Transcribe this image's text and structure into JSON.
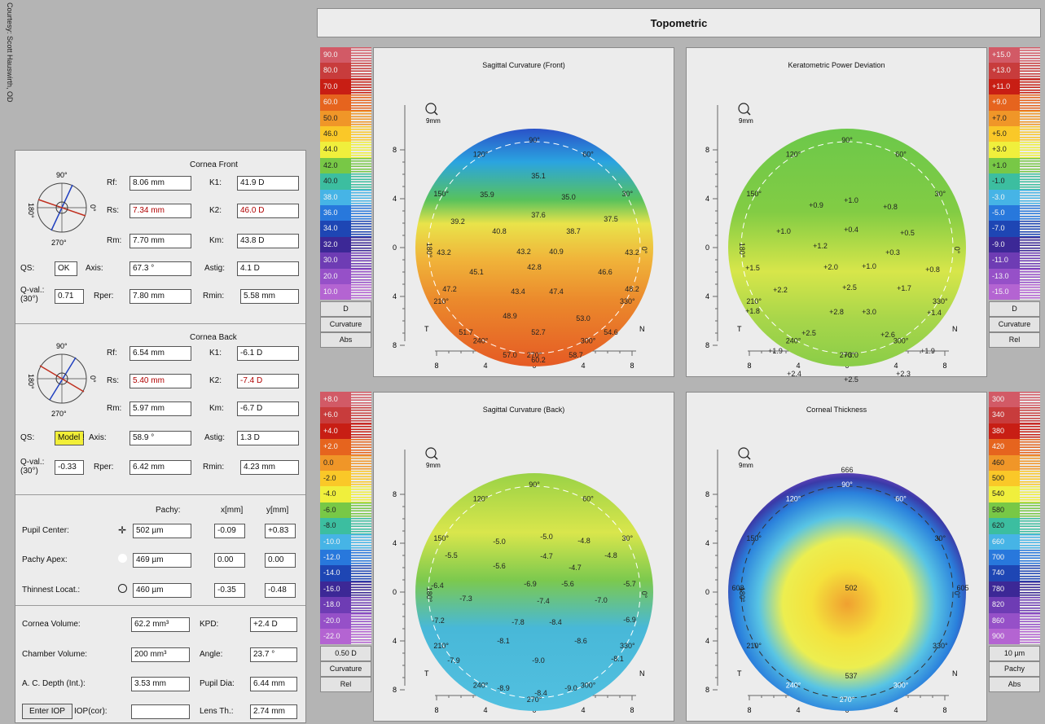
{
  "credit": "Courtesy: Scott Hauswirth, OD",
  "title": "Topometric",
  "front": {
    "title": "Cornea Front",
    "rf_label": "Rf:",
    "rf": "8.06 mm",
    "k1_label": "K1:",
    "k1": "41.9 D",
    "rs_label": "Rs:",
    "rs": "7.34 mm",
    "k2_label": "K2:",
    "k2": "46.0 D",
    "rm_label": "Rm:",
    "rm": "7.70 mm",
    "km_label": "Km:",
    "km": "43.8 D",
    "qs_label": "QS:",
    "qs": "OK",
    "axis_label": "Axis:",
    "axis": "67.3 °",
    "astig_label": "Astig:",
    "astig": "4.1 D",
    "qval_label": "Q-val.:",
    "qval_sub": "(30°)",
    "qval": "0.71",
    "rper_label": "Rper:",
    "rper": "7.80 mm",
    "rmin_label": "Rmin:",
    "rmin": "5.58 mm"
  },
  "back": {
    "title": "Cornea Back",
    "rf_label": "Rf:",
    "rf": "6.54 mm",
    "k1_label": "K1:",
    "k1": "-6.1 D",
    "rs_label": "Rs:",
    "rs": "5.40 mm",
    "k2_label": "K2:",
    "k2": "-7.4 D",
    "rm_label": "Rm:",
    "rm": "5.97 mm",
    "km_label": "Km:",
    "km": "-6.7 D",
    "qs_label": "QS:",
    "qs": "Model !",
    "axis_label": "Axis:",
    "axis": "58.9 °",
    "astig_label": "Astig:",
    "astig": "1.3 D",
    "qval_label": "Q-val.:",
    "qval_sub": "(30°)",
    "qval": "-0.33",
    "rper_label": "Rper:",
    "rper": "6.42 mm",
    "rmin_label": "Rmin:",
    "rmin": "4.23 mm"
  },
  "dial": {
    "deg90": "90°",
    "deg0": "0°",
    "deg180": "180°",
    "deg270": "270°"
  },
  "pachy": {
    "h_pachy": "Pachy:",
    "h_x": "x[mm]",
    "h_y": "y[mm]",
    "rows": [
      {
        "label": "Pupil Center:",
        "pachy": "502 µm",
        "x": "-0.09",
        "y": "+0.83"
      },
      {
        "label": "Pachy Apex:",
        "pachy": "469 µm",
        "x": "0.00",
        "y": "0.00"
      },
      {
        "label": "Thinnest Locat.:",
        "pachy": "460 µm",
        "x": "-0.35",
        "y": "-0.48"
      }
    ]
  },
  "volumes": {
    "cornea_volume_label": "Cornea Volume:",
    "cornea_volume": "62.2 mm³",
    "kpd_label": "KPD:",
    "kpd": "+2.4 D",
    "chamber_volume_label": "Chamber Volume:",
    "chamber_volume": "200 mm³",
    "angle_label": "Angle:",
    "angle": "23.7 °",
    "ac_depth_label": "A. C. Depth (Int.):",
    "ac_depth": "3.53 mm",
    "pupil_dia_label": "Pupil Dia:",
    "pupil_dia": "6.44 mm",
    "enter_iop": "Enter IOP",
    "iop_label": "IOP(cor):",
    "iop": "",
    "lens_th_label": "Lens Th.:",
    "lens_th": "2.74 mm"
  },
  "scales": {
    "front": {
      "values": [
        "90.0",
        "80.0",
        "70.0",
        "60.0",
        "50.0",
        "46.0",
        "44.0",
        "42.0",
        "40.0",
        "38.0",
        "36.0",
        "34.0",
        "32.0",
        "30.0",
        "20.0",
        "10.0"
      ],
      "colors": [
        "#d25a66",
        "#c83c3c",
        "#c81e14",
        "#e6641e",
        "#f09628",
        "#fac828",
        "#f0ef3c",
        "#78c846",
        "#3cbea0",
        "#46b4e6",
        "#2878dc",
        "#1e46b4",
        "#3c2896",
        "#6e3cb4",
        "#9650c8",
        "#b464d2"
      ],
      "box1": "D",
      "box2": "Curvature",
      "box3": "Abs"
    },
    "kpd": {
      "values": [
        "+15.0",
        "+13.0",
        "+11.0",
        "+9.0",
        "+7.0",
        "+5.0",
        "+3.0",
        "+1.0",
        "-1.0",
        "-3.0",
        "-5.0",
        "-7.0",
        "-9.0",
        "-11.0",
        "-13.0",
        "-15.0"
      ],
      "colors": [
        "#d25a66",
        "#c83c3c",
        "#c81e14",
        "#e6641e",
        "#f09628",
        "#fac828",
        "#f0ef3c",
        "#78c846",
        "#3cbea0",
        "#46b4e6",
        "#2878dc",
        "#1e46b4",
        "#3c2896",
        "#6e3cb4",
        "#9650c8",
        "#b464d2"
      ],
      "box1": "D",
      "box2": "Curvature",
      "box3": "Rel"
    },
    "back": {
      "values": [
        "+8.0",
        "+6.0",
        "+4.0",
        "+2.0",
        "0.0",
        "-2.0",
        "-4.0",
        "-6.0",
        "-8.0",
        "-10.0",
        "-12.0",
        "-14.0",
        "-16.0",
        "-18.0",
        "-20.0",
        "-22.0"
      ],
      "colors": [
        "#d25a66",
        "#c83c3c",
        "#c81e14",
        "#e6641e",
        "#f09628",
        "#fac828",
        "#f0ef3c",
        "#78c846",
        "#3cbea0",
        "#46b4e6",
        "#2878dc",
        "#1e46b4",
        "#3c2896",
        "#6e3cb4",
        "#9650c8",
        "#b464d2"
      ],
      "box1": "0.50 D",
      "box2": "Curvature",
      "box3": "Rel"
    },
    "thick": {
      "values": [
        "300",
        "340",
        "380",
        "420",
        "460",
        "500",
        "540",
        "580",
        "620",
        "660",
        "700",
        "740",
        "780",
        "820",
        "860",
        "900"
      ],
      "colors": [
        "#d25a66",
        "#c83c3c",
        "#c81e14",
        "#e6641e",
        "#f09628",
        "#fac828",
        "#f0ef3c",
        "#78c846",
        "#3cbea0",
        "#46b4e6",
        "#2878dc",
        "#1e46b4",
        "#3c2896",
        "#6e3cb4",
        "#9650c8",
        "#b464d2"
      ],
      "box1": "10 µm",
      "box2": "Pachy",
      "box3": "Abs"
    }
  },
  "maps": [
    {
      "title": "Sagittal Curvature (Front)",
      "lens": "9mm",
      "values": [
        [
          "35.9",
          -58,
          -65
        ],
        [
          "35.1",
          5,
          -88
        ],
        [
          "35.0",
          42,
          -62
        ],
        [
          "39.2",
          -94,
          -32
        ],
        [
          "37.6",
          5,
          -40
        ],
        [
          "37.5",
          94,
          -35
        ],
        [
          "40.8",
          -43,
          -20
        ],
        [
          "38.7",
          48,
          -20
        ],
        [
          "43.2",
          -111,
          6
        ],
        [
          "43.2",
          -13,
          5
        ],
        [
          "40.9",
          27,
          5
        ],
        [
          "43.2",
          120,
          6
        ],
        [
          "45.1",
          -71,
          30
        ],
        [
          "42.8",
          0,
          24
        ],
        [
          "46.6",
          87,
          30
        ],
        [
          "47.2",
          -104,
          51
        ],
        [
          "43.4",
          -20,
          54
        ],
        [
          "47.4",
          27,
          54
        ],
        [
          "48.2",
          120,
          51
        ],
        [
          "48.9",
          -30,
          84
        ],
        [
          "53.0",
          60,
          87
        ],
        [
          "51.7",
          -84,
          104
        ],
        [
          "52.7",
          5,
          104
        ],
        [
          "54.6",
          94,
          104
        ],
        [
          "57.0",
          -30,
          132
        ],
        [
          "60.2",
          5,
          138
        ],
        [
          "58.7",
          51,
          132
        ]
      ]
    },
    {
      "title": "Keratometric Power Deviation",
      "lens": "9mm",
      "values": [
        [
          "+0.9",
          -38,
          -52
        ],
        [
          "+1.0",
          5,
          -58
        ],
        [
          "+0.8",
          53,
          -50
        ],
        [
          "+1.0",
          -78,
          -20
        ],
        [
          "+0.4",
          5,
          -22
        ],
        [
          "+0.5",
          74,
          -18
        ],
        [
          "+1.2",
          -33,
          -2
        ],
        [
          "+0.3",
          56,
          6
        ],
        [
          "+1.5",
          -116,
          25
        ],
        [
          "+2.0",
          -20,
          24
        ],
        [
          "+1.0",
          27,
          23
        ],
        [
          "+0.8",
          105,
          27
        ],
        [
          "+2.2",
          -82,
          52
        ],
        [
          "+2.5",
          3,
          49
        ],
        [
          "+1.7",
          70,
          50
        ],
        [
          "+1.8",
          -116,
          78
        ],
        [
          "+2.8",
          -13,
          79
        ],
        [
          "+3.0",
          27,
          79
        ],
        [
          "+1.4",
          107,
          80
        ],
        [
          "+2.5",
          -47,
          105
        ],
        [
          "+2.6",
          50,
          107
        ],
        [
          "+1.9",
          -88,
          127
        ],
        [
          "+3.0",
          5,
          132
        ],
        [
          "+1.9",
          99,
          127
        ],
        [
          "+2.4",
          -65,
          155
        ],
        [
          "+2.5",
          5,
          162
        ],
        [
          "+2.3",
          69,
          155
        ]
      ]
    },
    {
      "title": "Sagittal Curvature (Back)",
      "lens": "9mm",
      "values": [
        [
          "-5.0",
          -43,
          -62
        ],
        [
          "-5.0",
          15,
          -68
        ],
        [
          "-4.8",
          61,
          -63
        ],
        [
          "-5.5",
          -102,
          -45
        ],
        [
          "-4.7",
          15,
          -44
        ],
        [
          "-4.8",
          94,
          -45
        ],
        [
          "-5.6",
          -43,
          -32
        ],
        [
          "-4.7",
          50,
          -30
        ],
        [
          "-6.4",
          -119,
          -8
        ],
        [
          "-6.9",
          -5,
          -10
        ],
        [
          "-5.6",
          41,
          -10
        ],
        [
          "-5.7",
          117,
          -10
        ],
        [
          "-7.3",
          -84,
          8
        ],
        [
          "-7.4",
          11,
          11
        ],
        [
          "-7.0",
          82,
          10
        ],
        [
          "-7.2",
          -118,
          35
        ],
        [
          "-7.8",
          -20,
          37
        ],
        [
          "-8.4",
          26,
          37
        ],
        [
          "-6.9",
          117,
          34
        ],
        [
          "-8.1",
          -38,
          60
        ],
        [
          "-8.6",
          57,
          60
        ],
        [
          "-7.9",
          -99,
          84
        ],
        [
          "-9.0",
          5,
          84
        ],
        [
          "-8.1",
          102,
          82
        ],
        [
          "-8.9",
          -38,
          118
        ],
        [
          "-8.4",
          8,
          124
        ],
        [
          "-9.0",
          45,
          118
        ]
      ]
    },
    {
      "title": "Corneal Thickness",
      "lens": "9mm",
      "values": [
        [
          "666",
          0,
          -150
        ],
        [
          "603",
          -134,
          -5
        ],
        [
          "502",
          5,
          -5
        ],
        [
          "605",
          142,
          -5
        ],
        [
          "537",
          5,
          103
        ]
      ]
    }
  ],
  "axes": {
    "ticks": [
      "8",
      "4",
      "0",
      "4",
      "8"
    ],
    "y_ticks": [
      "8",
      "4",
      "0",
      "4",
      "8"
    ],
    "T": "T",
    "N": "N",
    "deg": {
      "d90": "90°",
      "d60": "60°",
      "d30": "30°",
      "d0": "0°",
      "d330": "330°",
      "d300": "300°",
      "d270": "270°",
      "d240": "240°",
      "d210": "210°",
      "d180": "180°",
      "d150": "150°",
      "d120": "120°"
    }
  }
}
